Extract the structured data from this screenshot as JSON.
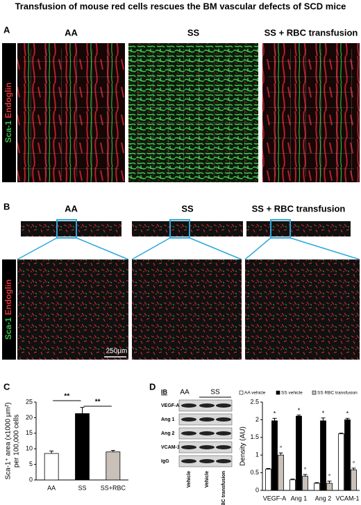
{
  "title": "Transfusion of mouse red cells rescues the BM vascular defects of SCD mice",
  "panel_a": {
    "label": "A",
    "columns": [
      "AA",
      "SS",
      "SS + RBC transfusion"
    ],
    "stain_green": "Sca-1",
    "stain_red": "Endoglin"
  },
  "panel_b": {
    "label": "B",
    "columns": [
      "AA",
      "SS",
      "SS + RBC transfusion"
    ],
    "stain_green": "Sca-1",
    "stain_red": "Endoglin",
    "scale_bar": "250μm"
  },
  "panel_c": {
    "label": "C"
  },
  "panel_d": {
    "label": "D",
    "blot": {
      "heading": "IB",
      "groups": [
        "AA",
        "SS"
      ],
      "rows": [
        "VEGF-A",
        "Ang 1",
        "Ang 2",
        "VCAM-1",
        "IgG"
      ],
      "lanes": [
        "Vehicle",
        "Vehicle",
        "RBC transfusion"
      ]
    }
  },
  "chart_data": [
    {
      "type": "bar",
      "ylabel": [
        "Sca-1⁺ area (x1000 µm²)",
        "per 100,000 cells"
      ],
      "categories": [
        "AA",
        "SS",
        "SS+RBC"
      ],
      "values": [
        8.5,
        21.3,
        9.0
      ],
      "errors": [
        0.8,
        2.0,
        0.5
      ],
      "colors": [
        "#ffffff",
        "#000000",
        "#c9c1b9"
      ],
      "ylim": [
        0,
        25
      ],
      "yticks": [
        0,
        5,
        10,
        15,
        20,
        25
      ],
      "annotations": [
        "**",
        "**"
      ]
    },
    {
      "type": "grouped-bar",
      "ylabel": "Density (AU)",
      "categories": [
        "VEGF-A",
        "Ang 1",
        "Ang 2",
        "VCAM-1"
      ],
      "series": [
        {
          "name": "AA vehicle",
          "color": "#ffffff",
          "values": [
            0.6,
            0.3,
            0.2,
            1.6
          ],
          "errors": [
            0.02,
            0.02,
            0.02,
            0.02
          ]
        },
        {
          "name": "SS vehicle",
          "color": "#000000",
          "values": [
            1.97,
            2.1,
            1.97,
            2.0
          ],
          "errors": [
            0.07,
            0.03,
            0.08,
            0.04
          ],
          "marker": "*"
        },
        {
          "name": "SS RBC transfusion",
          "color": "#c9c1b9",
          "values": [
            1.0,
            0.4,
            0.2,
            0.58
          ],
          "errors": [
            0.06,
            0.05,
            0.06,
            0.05
          ],
          "marker": "°"
        }
      ],
      "ylim": [
        0,
        2.5
      ],
      "yticks": [
        0,
        0.5,
        1,
        1.5,
        2,
        2.5
      ],
      "legend": "top"
    }
  ]
}
